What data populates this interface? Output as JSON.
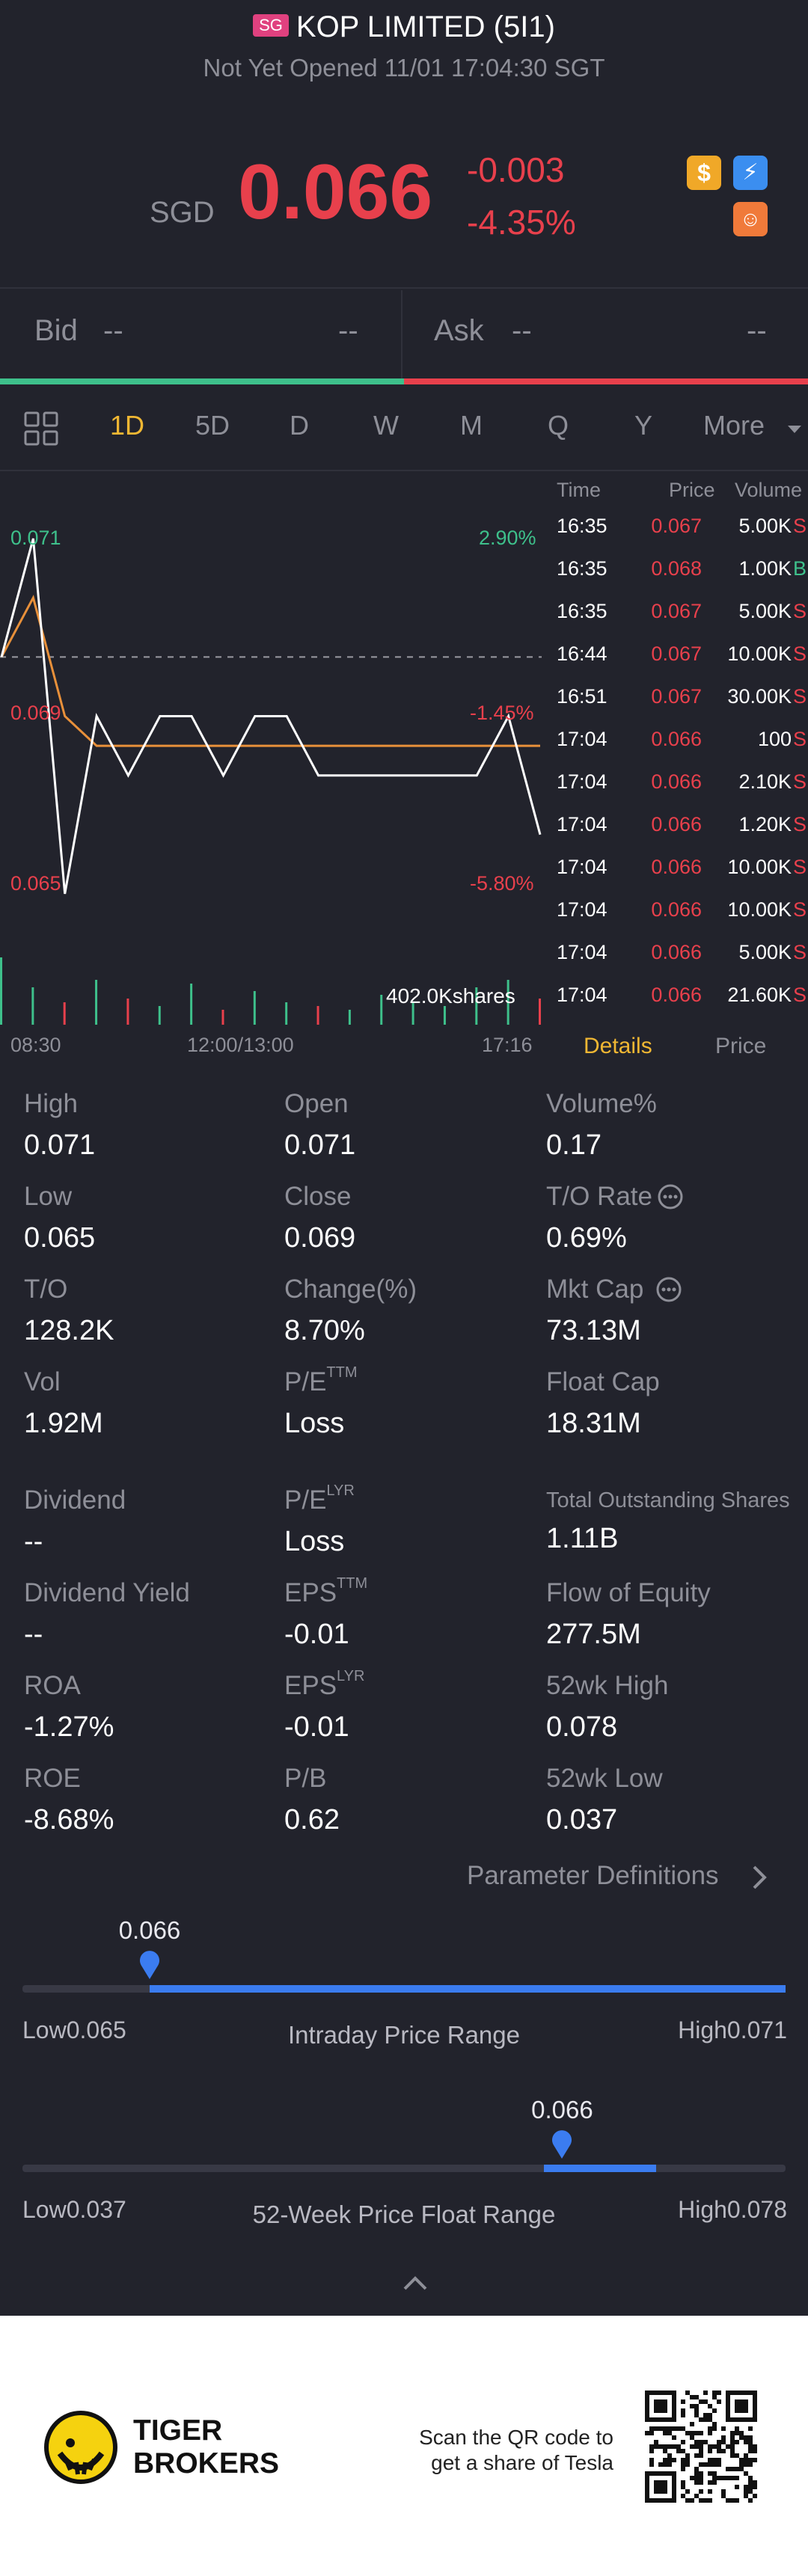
{
  "header": {
    "market_badge": "SG",
    "title": "KOP LIMITED (5I1)",
    "status": "Not Yet Opened 11/01 17:04:30 SGT"
  },
  "quote": {
    "currency": "SGD",
    "price": "0.066",
    "change": "-0.003",
    "change_pct": "-4.35%"
  },
  "bid_ask": {
    "bid_label": "Bid",
    "bid_price": "--",
    "bid_size": "--",
    "ask_label": "Ask",
    "ask_price": "--",
    "ask_size": "--"
  },
  "periods": {
    "tabs": [
      "1D",
      "5D",
      "D",
      "W",
      "M",
      "Q",
      "Y",
      "More"
    ],
    "active": "1D"
  },
  "chart": {
    "price_labels": {
      "top": "0.071",
      "mid": "0.069",
      "bottom": "0.065"
    },
    "pct_labels": {
      "top": "2.90%",
      "mid": "-1.45%",
      "bottom": "-5.80%"
    },
    "volume_label": "402.0Kshares",
    "time_labels": [
      "08:30",
      "12:00/13:00",
      "17:16"
    ]
  },
  "chart_data": {
    "type": "line",
    "x": [
      "08:30",
      "09:00",
      "09:30",
      "10:00",
      "10:30",
      "11:00",
      "11:30",
      "12:00",
      "13:00",
      "13:30",
      "14:00",
      "14:30",
      "15:00",
      "15:30",
      "16:00",
      "16:30",
      "17:00",
      "17:16"
    ],
    "series": [
      {
        "values": [
          0.069,
          0.071,
          0.065,
          0.068,
          0.067,
          0.068,
          0.068,
          0.067,
          0.068,
          0.068,
          0.067,
          0.067,
          0.067,
          0.067,
          0.067,
          0.067,
          0.068,
          0.066
        ]
      },
      {
        "values": [
          0.069,
          0.07,
          0.068,
          0.0675,
          0.0675,
          0.0675,
          0.0675,
          0.0675,
          0.0675,
          0.0675,
          0.0675,
          0.0675,
          0.0675,
          0.0675,
          0.0675,
          0.0675,
          0.0675,
          0.0675
        ]
      }
    ],
    "ylim": [
      0.065,
      0.071
    ],
    "previous_close": 0.069,
    "line_colors": [
      "#ffffff",
      "#e8903a"
    ],
    "volume_colors": [
      "#e8404c",
      "#3ec08b"
    ]
  },
  "trades": {
    "headers": [
      "Time",
      "Price",
      "Volume"
    ],
    "rows": [
      {
        "time": "16:35",
        "price": "0.067",
        "volume": "5.00K",
        "side": "S"
      },
      {
        "time": "16:35",
        "price": "0.068",
        "volume": "1.00K",
        "side": "B"
      },
      {
        "time": "16:35",
        "price": "0.067",
        "volume": "5.00K",
        "side": "S"
      },
      {
        "time": "16:44",
        "price": "0.067",
        "volume": "10.00K",
        "side": "S"
      },
      {
        "time": "16:51",
        "price": "0.067",
        "volume": "30.00K",
        "side": "S"
      },
      {
        "time": "17:04",
        "price": "0.066",
        "volume": "100",
        "side": "S"
      },
      {
        "time": "17:04",
        "price": "0.066",
        "volume": "2.10K",
        "side": "S"
      },
      {
        "time": "17:04",
        "price": "0.066",
        "volume": "1.20K",
        "side": "S"
      },
      {
        "time": "17:04",
        "price": "0.066",
        "volume": "10.00K",
        "side": "S"
      },
      {
        "time": "17:04",
        "price": "0.066",
        "volume": "10.00K",
        "side": "S"
      },
      {
        "time": "17:04",
        "price": "0.066",
        "volume": "5.00K",
        "side": "S"
      },
      {
        "time": "17:04",
        "price": "0.066",
        "volume": "21.60K",
        "side": "S"
      }
    ],
    "tab_details": "Details",
    "tab_price": "Price"
  },
  "details": {
    "high": {
      "label": "High",
      "value": "0.071"
    },
    "open": {
      "label": "Open",
      "value": "0.071"
    },
    "volume_pct": {
      "label": "Volume%",
      "value": "0.17"
    },
    "low": {
      "label": "Low",
      "value": "0.065"
    },
    "close": {
      "label": "Close",
      "value": "0.069"
    },
    "to_rate": {
      "label": "T/O Rate",
      "value": "0.69%"
    },
    "to": {
      "label": "T/O",
      "value": "128.2K"
    },
    "change_pct": {
      "label": "Change(%)",
      "value": "8.70%"
    },
    "mkt_cap": {
      "label": "Mkt Cap",
      "value": "73.13M"
    },
    "vol": {
      "label": "Vol",
      "value": "1.92M"
    },
    "pe_ttm": {
      "label": "P/E",
      "sup": "TTM",
      "value": "Loss"
    },
    "float_cap": {
      "label": "Float Cap",
      "value": "18.31M"
    },
    "dividend": {
      "label": "Dividend",
      "value": "--"
    },
    "pe_lyr": {
      "label": "P/E",
      "sup": "LYR",
      "value": "Loss"
    },
    "total_shares": {
      "label": "Total Outstanding Shares",
      "value": "1.11B"
    },
    "dividend_yield": {
      "label": "Dividend Yield",
      "value": "--"
    },
    "eps_ttm": {
      "label": "EPS",
      "sup": "TTM",
      "value": "-0.01"
    },
    "flow_equity": {
      "label": "Flow of Equity",
      "value": "277.5M"
    },
    "roa": {
      "label": "ROA",
      "value": "-1.27%"
    },
    "eps_lyr": {
      "label": "EPS",
      "sup": "LYR",
      "value": "-0.01"
    },
    "wk52_high": {
      "label": "52wk High",
      "value": "0.078"
    },
    "roe": {
      "label": "ROE",
      "value": "-8.68%"
    },
    "pb": {
      "label": "P/B",
      "value": "0.62"
    },
    "wk52_low": {
      "label": "52wk Low",
      "value": "0.037"
    },
    "param_link": "Parameter Definitions"
  },
  "ranges": {
    "intraday": {
      "current": "0.066",
      "low_label": "Low0.065",
      "high_label": "High0.071",
      "title": "Intraday Price Range",
      "low": 0.065,
      "high": 0.071,
      "value": 0.066
    },
    "week52": {
      "current": "0.066",
      "low_label": "Low0.037",
      "high_label": "High0.078",
      "title": "52-Week Price Float Range",
      "low": 0.037,
      "high": 0.078,
      "value": 0.066
    }
  },
  "footer": {
    "brand_line1": "TIGER",
    "brand_line2": "BROKERS",
    "qr_text_line1": "Scan the QR code to",
    "qr_text_line2": "get a share of Tesla"
  },
  "colors": {
    "background": "#22232c",
    "up": "#3ec08b",
    "down": "#e8404c",
    "accent": "#f0b733",
    "range_bar": "#3b7cf0"
  }
}
